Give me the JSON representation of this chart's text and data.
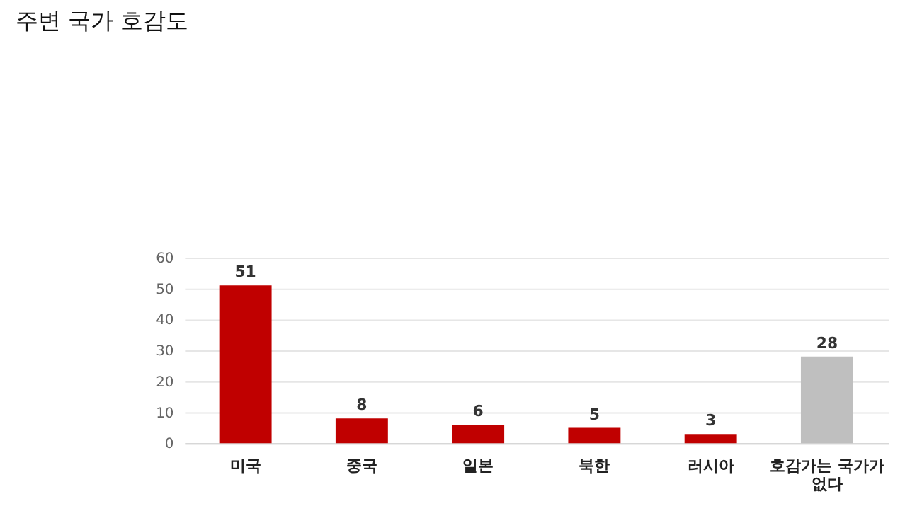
{
  "chart_data": {
    "type": "bar",
    "title": "주변 국가 호감도",
    "categories": [
      "미국",
      "중국",
      "일본",
      "북한",
      "러시아",
      "호감가는 국가가 없다"
    ],
    "values": [
      51,
      8,
      6,
      5,
      3,
      28
    ],
    "colors": [
      "#c00000",
      "#c00000",
      "#c00000",
      "#c00000",
      "#c00000",
      "#bfbfbf"
    ],
    "ylim": [
      0,
      60
    ],
    "yticks": [
      0,
      10,
      20,
      30,
      40,
      50,
      60
    ],
    "grid": "y",
    "data_labels": true
  }
}
